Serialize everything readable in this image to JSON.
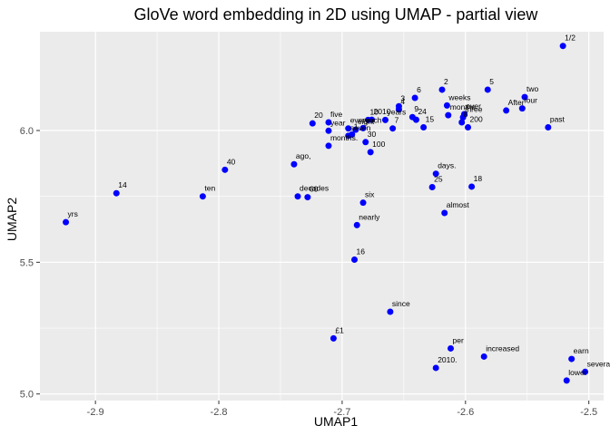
{
  "chart_data": {
    "type": "scatter",
    "title": "GloVe word embedding in 2D using UMAP - partial view",
    "xlabel": "UMAP1",
    "ylabel": "UMAP2",
    "xlim": [
      -2.945,
      -2.488
    ],
    "ylim": [
      4.975,
      6.375
    ],
    "x_ticks": [
      -2.9,
      -2.8,
      -2.7,
      -2.6,
      -2.5
    ],
    "x_tick_labels": [
      "-2.9",
      "-2.8",
      "-2.7",
      "-2.6",
      "-2.5"
    ],
    "y_ticks": [
      5.0,
      5.5,
      6.0
    ],
    "y_tick_labels": [
      "5.0",
      "5.5",
      "6.0"
    ],
    "grid": true,
    "point_color": "#0000ff",
    "panel_color": "#ebebeb",
    "grid_color": "#ffffff",
    "points": [
      {
        "label": "1/2",
        "x": -2.521,
        "y": 6.321
      },
      {
        "label": "2",
        "x": -2.619,
        "y": 6.155
      },
      {
        "label": "5",
        "x": -2.582,
        "y": 6.155
      },
      {
        "label": "6",
        "x": -2.641,
        "y": 6.124
      },
      {
        "label": "two",
        "x": -2.552,
        "y": 6.127
      },
      {
        "label": "four",
        "x": -2.554,
        "y": 6.084
      },
      {
        "label": "After",
        "x": -2.567,
        "y": 6.076
      },
      {
        "label": "weeks",
        "x": -2.615,
        "y": 6.095
      },
      {
        "label": "months",
        "x": -2.614,
        "y": 6.058
      },
      {
        "label": "over",
        "x": -2.601,
        "y": 6.062
      },
      {
        "label": "three",
        "x": -2.602,
        "y": 6.05
      },
      {
        "label": "8",
        "x": -2.603,
        "y": 6.031
      },
      {
        "label": "200",
        "x": -2.598,
        "y": 6.012
      },
      {
        "label": "past",
        "x": -2.533,
        "y": 6.012
      },
      {
        "label": "3",
        "x": -2.654,
        "y": 6.092
      },
      {
        "label": "4",
        "x": -2.654,
        "y": 6.08
      },
      {
        "label": "9",
        "x": -2.643,
        "y": 6.051
      },
      {
        "label": "24",
        "x": -2.64,
        "y": 6.041
      },
      {
        "label": "15",
        "x": -2.634,
        "y": 6.012
      },
      {
        "label": "7",
        "x": -2.659,
        "y": 6.008
      },
      {
        "label": "years",
        "x": -2.665,
        "y": 6.04
      },
      {
        "label": "20",
        "x": -2.724,
        "y": 6.027
      },
      {
        "label": "five",
        "x": -2.711,
        "y": 6.031
      },
      {
        "label": "year",
        "x": -2.711,
        "y": 5.999
      },
      {
        "label": "every",
        "x": -2.695,
        "y": 6.008
      },
      {
        "label": "eight",
        "x": -2.689,
        "y": 6.003
      },
      {
        "label": "each",
        "x": -2.683,
        "y": 6.009
      },
      {
        "label": "10",
        "x": -2.679,
        "y": 6.04
      },
      {
        "label": "2010",
        "x": -2.676,
        "y": 6.041
      },
      {
        "label": "seven",
        "x": -2.695,
        "y": 5.98
      },
      {
        "label": "1",
        "x": -2.692,
        "y": 5.985
      },
      {
        "label": "30",
        "x": -2.681,
        "y": 5.956
      },
      {
        "label": "months.",
        "x": -2.711,
        "y": 5.942
      },
      {
        "label": "100",
        "x": -2.677,
        "y": 5.918
      },
      {
        "label": "40",
        "x": -2.795,
        "y": 5.851
      },
      {
        "label": "ago,",
        "x": -2.739,
        "y": 5.872
      },
      {
        "label": "days.",
        "x": -2.624,
        "y": 5.836
      },
      {
        "label": "25",
        "x": -2.627,
        "y": 5.785
      },
      {
        "label": "18",
        "x": -2.595,
        "y": 5.787
      },
      {
        "label": "14",
        "x": -2.883,
        "y": 5.762
      },
      {
        "label": "ten",
        "x": -2.813,
        "y": 5.75
      },
      {
        "label": "decades",
        "x": -2.736,
        "y": 5.75
      },
      {
        "label": "60",
        "x": -2.728,
        "y": 5.747
      },
      {
        "label": "six",
        "x": -2.683,
        "y": 5.726
      },
      {
        "label": "almost",
        "x": -2.617,
        "y": 5.687
      },
      {
        "label": "nearly",
        "x": -2.688,
        "y": 5.641
      },
      {
        "label": "yrs",
        "x": -2.924,
        "y": 5.652
      },
      {
        "label": "16",
        "x": -2.69,
        "y": 5.51
      },
      {
        "label": "since",
        "x": -2.661,
        "y": 5.312
      },
      {
        "label": "£1",
        "x": -2.707,
        "y": 5.211
      },
      {
        "label": "per",
        "x": -2.612,
        "y": 5.173
      },
      {
        "label": "increased",
        "x": -2.585,
        "y": 5.142
      },
      {
        "label": "2010.",
        "x": -2.624,
        "y": 5.099
      },
      {
        "label": "earn",
        "x": -2.514,
        "y": 5.133
      },
      {
        "label": "several",
        "x": -2.503,
        "y": 5.084
      },
      {
        "label": "lower",
        "x": -2.518,
        "y": 5.051
      }
    ]
  }
}
